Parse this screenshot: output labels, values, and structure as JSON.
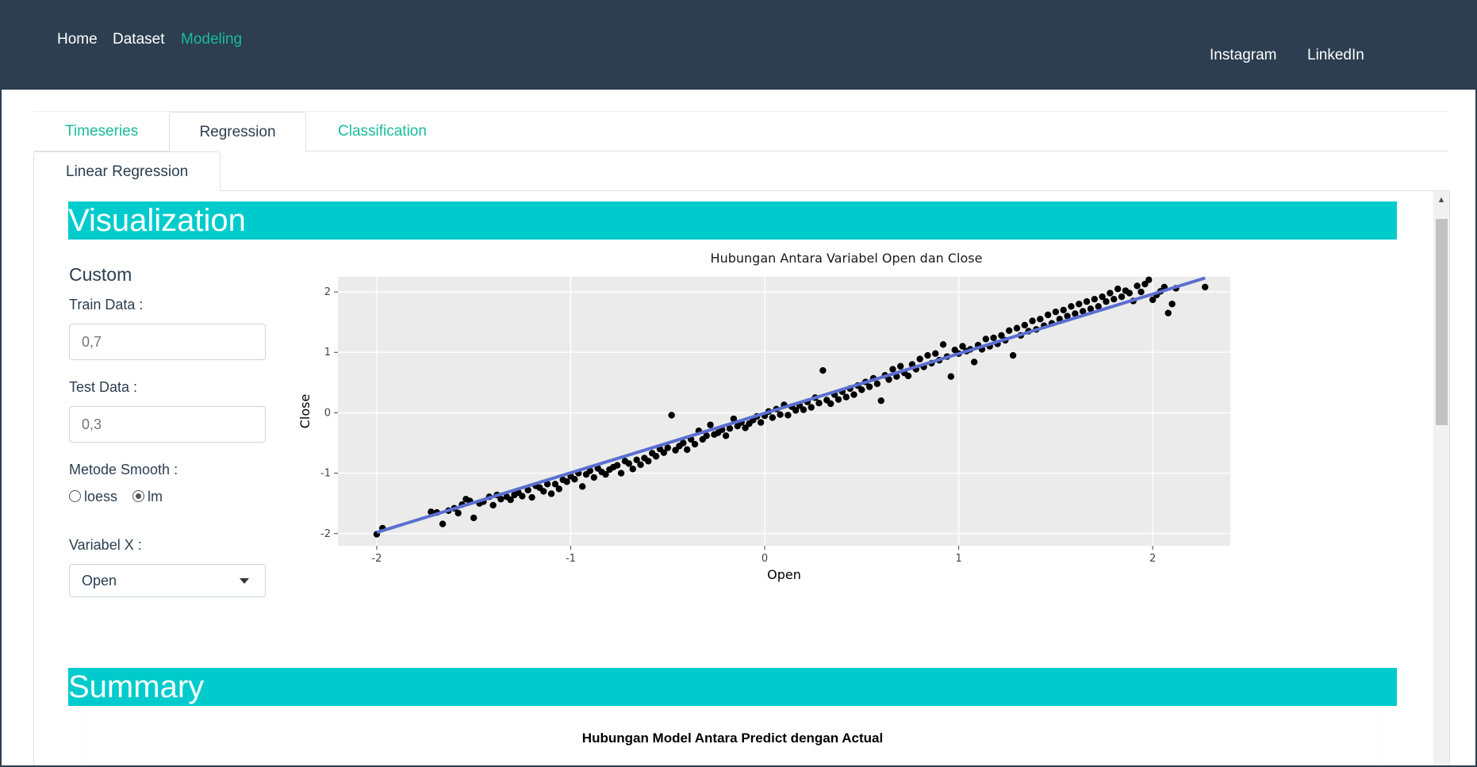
{
  "navbar": {
    "links": [
      {
        "label": "Home",
        "active": false
      },
      {
        "label": "Dataset",
        "active": false
      },
      {
        "label": "Modeling",
        "active": true
      }
    ],
    "right_links": [
      "Instagram",
      "LinkedIn"
    ]
  },
  "tabs": [
    {
      "label": "Timeseries",
      "active": false
    },
    {
      "label": "Regression",
      "active": true
    },
    {
      "label": "Classification",
      "active": false
    }
  ],
  "subtabs": [
    {
      "label": "Linear Regression",
      "active": true
    }
  ],
  "sections": {
    "visualization_title": "Visualization",
    "summary_title": "Summary"
  },
  "sidebar": {
    "custom_title": "Custom",
    "train_label": "Train Data :",
    "train_placeholder": "0,7",
    "test_label": "Test Data :",
    "test_placeholder": "0,3",
    "smooth_label": "Metode Smooth :",
    "smooth_options": [
      {
        "label": "loess",
        "checked": false
      },
      {
        "label": "lm",
        "checked": true
      }
    ],
    "variable_label": "Variabel X :",
    "variable_value": "Open"
  },
  "chart_data": {
    "type": "scatter",
    "title": "Hubungan Antara Variabel Open dan Close",
    "xlabel": "Open",
    "ylabel": "Close",
    "xlim": [
      -2.2,
      2.4
    ],
    "ylim": [
      -2.2,
      2.25
    ],
    "x_ticks": [
      "-2",
      "-1",
      "0",
      "1",
      "2"
    ],
    "y_ticks": [
      "-2",
      "-1",
      "0",
      "1",
      "2"
    ],
    "grid": true,
    "background": "#ebebeb",
    "point_color": "#000000",
    "fit_line": {
      "method": "lm",
      "color": "#5a6fd0",
      "x": [
        -2.0,
        2.27
      ],
      "y": [
        -1.98,
        2.23
      ]
    },
    "series": [
      {
        "points": [
          [
            -2.0,
            -2.01
          ],
          [
            -1.97,
            -1.91
          ],
          [
            -1.72,
            -1.64
          ],
          [
            -1.69,
            -1.65
          ],
          [
            -1.66,
            -1.84
          ],
          [
            -1.63,
            -1.62
          ],
          [
            -1.6,
            -1.58
          ],
          [
            -1.58,
            -1.66
          ],
          [
            -1.56,
            -1.52
          ],
          [
            -1.54,
            -1.43
          ],
          [
            -1.52,
            -1.46
          ],
          [
            -1.5,
            -1.74
          ],
          [
            -1.47,
            -1.5
          ],
          [
            -1.45,
            -1.47
          ],
          [
            -1.42,
            -1.39
          ],
          [
            -1.4,
            -1.53
          ],
          [
            -1.38,
            -1.36
          ],
          [
            -1.36,
            -1.43
          ],
          [
            -1.33,
            -1.39
          ],
          [
            -1.31,
            -1.44
          ],
          [
            -1.29,
            -1.36
          ],
          [
            -1.27,
            -1.32
          ],
          [
            -1.25,
            -1.38
          ],
          [
            -1.22,
            -1.28
          ],
          [
            -1.2,
            -1.4
          ],
          [
            -1.18,
            -1.21
          ],
          [
            -1.16,
            -1.24
          ],
          [
            -1.14,
            -1.3
          ],
          [
            -1.12,
            -1.18
          ],
          [
            -1.1,
            -1.34
          ],
          [
            -1.08,
            -1.18
          ],
          [
            -1.06,
            -1.26
          ],
          [
            -1.04,
            -1.11
          ],
          [
            -1.02,
            -1.14
          ],
          [
            -1.0,
            -1.05
          ],
          [
            -0.98,
            -1.1
          ],
          [
            -0.96,
            -1.0
          ],
          [
            -0.94,
            -1.22
          ],
          [
            -0.92,
            -1.02
          ],
          [
            -0.9,
            -0.96
          ],
          [
            -0.88,
            -1.07
          ],
          [
            -0.86,
            -0.92
          ],
          [
            -0.84,
            -0.98
          ],
          [
            -0.82,
            -1.02
          ],
          [
            -0.8,
            -0.94
          ],
          [
            -0.78,
            -0.9
          ],
          [
            -0.76,
            -0.87
          ],
          [
            -0.74,
            -1.0
          ],
          [
            -0.72,
            -0.8
          ],
          [
            -0.7,
            -0.84
          ],
          [
            -0.68,
            -0.93
          ],
          [
            -0.66,
            -0.78
          ],
          [
            -0.64,
            -0.86
          ],
          [
            -0.62,
            -0.75
          ],
          [
            -0.6,
            -0.8
          ],
          [
            -0.58,
            -0.67
          ],
          [
            -0.56,
            -0.72
          ],
          [
            -0.54,
            -0.6
          ],
          [
            -0.52,
            -0.66
          ],
          [
            -0.5,
            -0.58
          ],
          [
            -0.48,
            -0.04
          ],
          [
            -0.46,
            -0.62
          ],
          [
            -0.44,
            -0.55
          ],
          [
            -0.42,
            -0.5
          ],
          [
            -0.4,
            -0.61
          ],
          [
            -0.38,
            -0.44
          ],
          [
            -0.36,
            -0.52
          ],
          [
            -0.34,
            -0.3
          ],
          [
            -0.32,
            -0.44
          ],
          [
            -0.3,
            -0.38
          ],
          [
            -0.28,
            -0.2
          ],
          [
            -0.26,
            -0.36
          ],
          [
            -0.24,
            -0.33
          ],
          [
            -0.22,
            -0.28
          ],
          [
            -0.2,
            -0.38
          ],
          [
            -0.18,
            -0.26
          ],
          [
            -0.16,
            -0.1
          ],
          [
            -0.14,
            -0.22
          ],
          [
            -0.12,
            -0.16
          ],
          [
            -0.1,
            -0.25
          ],
          [
            -0.08,
            -0.18
          ],
          [
            -0.06,
            -0.12
          ],
          [
            -0.04,
            -0.06
          ],
          [
            -0.02,
            -0.16
          ],
          [
            0.0,
            -0.05
          ],
          [
            0.02,
            0.02
          ],
          [
            0.04,
            -0.08
          ],
          [
            0.06,
            0.06
          ],
          [
            0.08,
            -0.03
          ],
          [
            0.1,
            0.13
          ],
          [
            0.12,
            -0.04
          ],
          [
            0.14,
            0.1
          ],
          [
            0.16,
            0.04
          ],
          [
            0.18,
            0.12
          ],
          [
            0.2,
            0.05
          ],
          [
            0.22,
            0.18
          ],
          [
            0.24,
            0.09
          ],
          [
            0.26,
            0.25
          ],
          [
            0.28,
            0.16
          ],
          [
            0.3,
            0.7
          ],
          [
            0.32,
            0.21
          ],
          [
            0.34,
            0.15
          ],
          [
            0.36,
            0.3
          ],
          [
            0.38,
            0.22
          ],
          [
            0.4,
            0.35
          ],
          [
            0.42,
            0.26
          ],
          [
            0.44,
            0.4
          ],
          [
            0.46,
            0.3
          ],
          [
            0.48,
            0.45
          ],
          [
            0.5,
            0.38
          ],
          [
            0.52,
            0.51
          ],
          [
            0.54,
            0.43
          ],
          [
            0.56,
            0.57
          ],
          [
            0.58,
            0.48
          ],
          [
            0.6,
            0.2
          ],
          [
            0.62,
            0.62
          ],
          [
            0.64,
            0.55
          ],
          [
            0.66,
            0.72
          ],
          [
            0.68,
            0.6
          ],
          [
            0.7,
            0.77
          ],
          [
            0.72,
            0.66
          ],
          [
            0.74,
            0.61
          ],
          [
            0.76,
            0.8
          ],
          [
            0.78,
            0.72
          ],
          [
            0.8,
            0.89
          ],
          [
            0.82,
            0.76
          ],
          [
            0.84,
            0.95
          ],
          [
            0.86,
            0.82
          ],
          [
            0.88,
            0.98
          ],
          [
            0.9,
            0.87
          ],
          [
            0.92,
            1.13
          ],
          [
            0.94,
            0.93
          ],
          [
            0.96,
            0.6
          ],
          [
            0.98,
            1.04
          ],
          [
            1.0,
            0.98
          ],
          [
            1.02,
            1.1
          ],
          [
            1.04,
            1.02
          ],
          [
            1.06,
            1.05
          ],
          [
            1.08,
            0.84
          ],
          [
            1.1,
            1.12
          ],
          [
            1.12,
            1.05
          ],
          [
            1.14,
            1.22
          ],
          [
            1.16,
            1.1
          ],
          [
            1.18,
            1.24
          ],
          [
            1.2,
            1.14
          ],
          [
            1.22,
            1.28
          ],
          [
            1.24,
            1.2
          ],
          [
            1.26,
            1.36
          ],
          [
            1.28,
            0.95
          ],
          [
            1.3,
            1.4
          ],
          [
            1.32,
            1.28
          ],
          [
            1.34,
            1.45
          ],
          [
            1.36,
            1.35
          ],
          [
            1.38,
            1.52
          ],
          [
            1.4,
            1.38
          ],
          [
            1.42,
            1.55
          ],
          [
            1.44,
            1.44
          ],
          [
            1.46,
            1.62
          ],
          [
            1.48,
            1.48
          ],
          [
            1.5,
            1.67
          ],
          [
            1.52,
            1.55
          ],
          [
            1.54,
            1.7
          ],
          [
            1.56,
            1.6
          ],
          [
            1.58,
            1.76
          ],
          [
            1.6,
            1.64
          ],
          [
            1.62,
            1.8
          ],
          [
            1.64,
            1.68
          ],
          [
            1.66,
            1.84
          ],
          [
            1.68,
            1.72
          ],
          [
            1.7,
            1.88
          ],
          [
            1.72,
            1.76
          ],
          [
            1.74,
            1.92
          ],
          [
            1.76,
            1.84
          ],
          [
            1.78,
            1.98
          ],
          [
            1.8,
            1.88
          ],
          [
            1.82,
            2.05
          ],
          [
            1.84,
            1.92
          ],
          [
            1.86,
            2.02
          ],
          [
            1.88,
            1.98
          ],
          [
            1.9,
            1.85
          ],
          [
            1.92,
            2.1
          ],
          [
            1.94,
            2.0
          ],
          [
            1.96,
            2.13
          ],
          [
            1.98,
            2.2
          ],
          [
            2.0,
            1.87
          ],
          [
            2.02,
            1.95
          ],
          [
            2.04,
            2.01
          ],
          [
            2.06,
            2.08
          ],
          [
            2.08,
            1.65
          ],
          [
            2.1,
            1.8
          ],
          [
            2.12,
            2.06
          ],
          [
            2.27,
            2.08
          ]
        ]
      }
    ]
  },
  "summary_chart": {
    "title": "Hubungan Model Antara Predict dengan Actual"
  }
}
